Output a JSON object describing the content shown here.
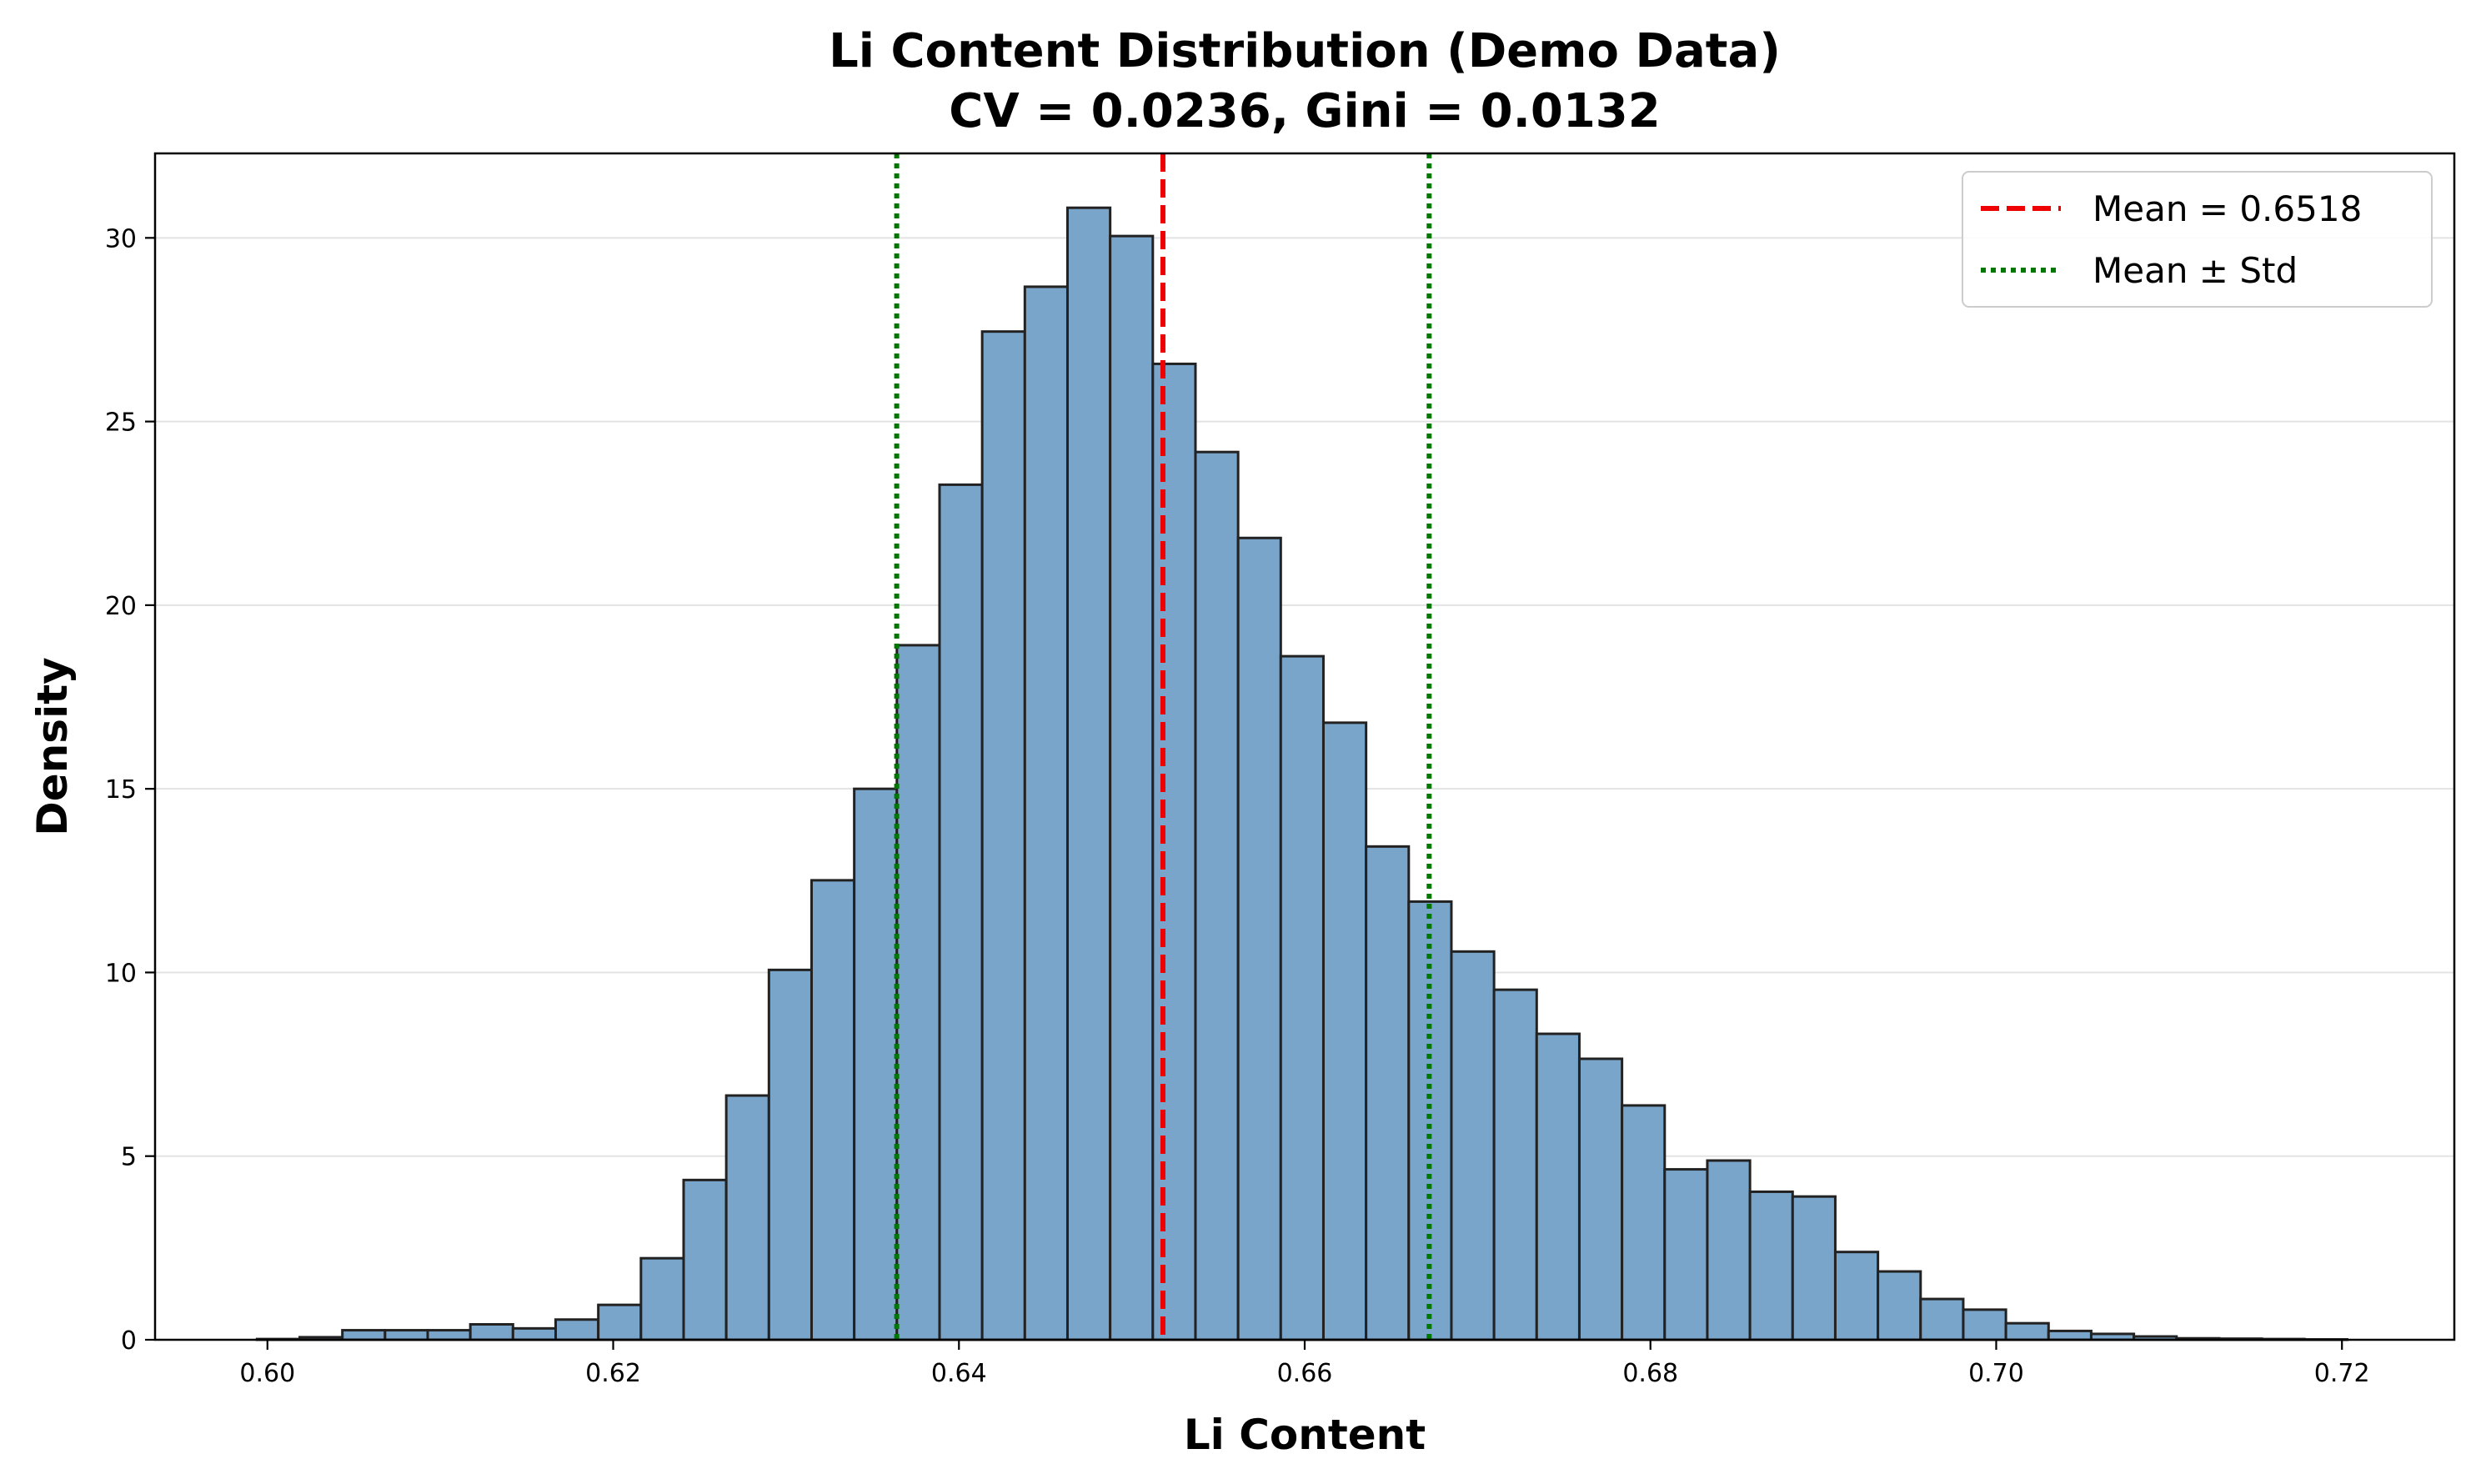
{
  "chart_data": {
    "type": "bar",
    "title": "Li Content Distribution (Demo Data)",
    "subtitle": "CV = 0.0236, Gini = 0.0132",
    "xlabel": "Li Content",
    "ylabel": "Density",
    "xlim": [
      0.5935,
      0.7265
    ],
    "ylim": [
      0,
      32.3
    ],
    "x_ticks": [
      "0.60",
      "0.62",
      "0.64",
      "0.66",
      "0.68",
      "0.70",
      "0.72"
    ],
    "y_ticks": [
      "0",
      "5",
      "10",
      "15",
      "20",
      "25",
      "30"
    ],
    "grid": "y-axis",
    "legend_position": "upper right",
    "bin_range": [
      0.5994,
      0.7203
    ],
    "bar_color": "#7aa5cb",
    "bar_edge_color": "#222222",
    "values": [
      0.02,
      0.07,
      0.26,
      0.26,
      0.26,
      0.42,
      0.31,
      0.55,
      0.95,
      2.22,
      4.35,
      6.65,
      10.07,
      12.51,
      15.0,
      18.91,
      23.28,
      27.45,
      28.67,
      30.82,
      30.05,
      26.57,
      24.17,
      21.83,
      18.61,
      16.8,
      13.43,
      11.93,
      10.57,
      9.53,
      8.33,
      7.65,
      6.38,
      4.64,
      4.88,
      4.03,
      3.9,
      2.39,
      1.86,
      1.11,
      0.82,
      0.45,
      0.24,
      0.16,
      0.09,
      0.04,
      0.03,
      0.02,
      0.01
    ],
    "reference_lines": [
      {
        "label": "Mean = 0.6518",
        "x": 0.6518,
        "color": "#ee0000",
        "style": "dashed"
      },
      {
        "label": "Mean ± Std",
        "x": [
          0.6364,
          0.6672
        ],
        "color": "#007700",
        "style": "dotted"
      }
    ]
  }
}
